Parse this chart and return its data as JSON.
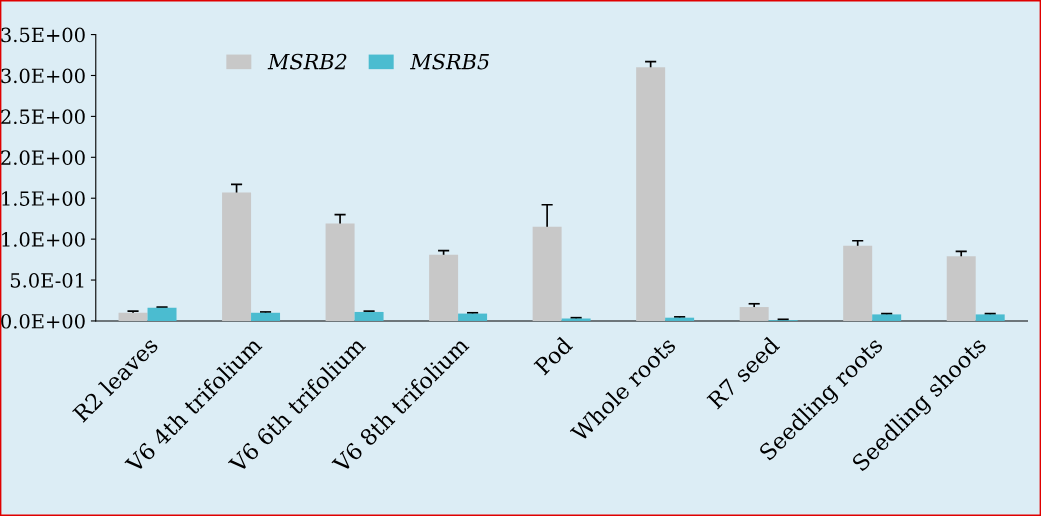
{
  "chart_data": {
    "type": "bar",
    "categories": [
      "R2 leaves",
      "V6 4th trifolium",
      "V6 6th trifolium",
      "V6 8th trifolium",
      "Pod",
      "Whole roots",
      "R7 seed",
      "Seedling roots",
      "Seedling shoots"
    ],
    "series": [
      {
        "name": "MSRB2",
        "color": "#c8c8c8",
        "values": [
          0.1,
          1.57,
          1.19,
          0.81,
          1.15,
          3.1,
          0.17,
          0.92,
          0.79
        ],
        "errors": [
          0.02,
          0.1,
          0.11,
          0.05,
          0.27,
          0.07,
          0.04,
          0.06,
          0.06
        ]
      },
      {
        "name": "MSRB5",
        "color": "#4bbcd0",
        "values": [
          0.16,
          0.1,
          0.11,
          0.09,
          0.03,
          0.04,
          0.01,
          0.08,
          0.08
        ],
        "errors": [
          0.01,
          0.01,
          0.01,
          0.01,
          0.01,
          0.01,
          0.01,
          0.01,
          0.01
        ]
      }
    ],
    "ylim": [
      0,
      3.5
    ],
    "yticks": [
      {
        "value": 0,
        "label": "0.0E+00"
      },
      {
        "value": 0.5,
        "label": "5.0E-01"
      },
      {
        "value": 1.0,
        "label": "1.0E+00"
      },
      {
        "value": 1.5,
        "label": "1.5E+00"
      },
      {
        "value": 2.0,
        "label": "2.0E+00"
      },
      {
        "value": 2.5,
        "label": "2.5E+00"
      },
      {
        "value": 3.0,
        "label": "3.0E+00"
      },
      {
        "value": 3.5,
        "label": "3.5E+00"
      }
    ],
    "grid": false,
    "legend": "top left"
  }
}
